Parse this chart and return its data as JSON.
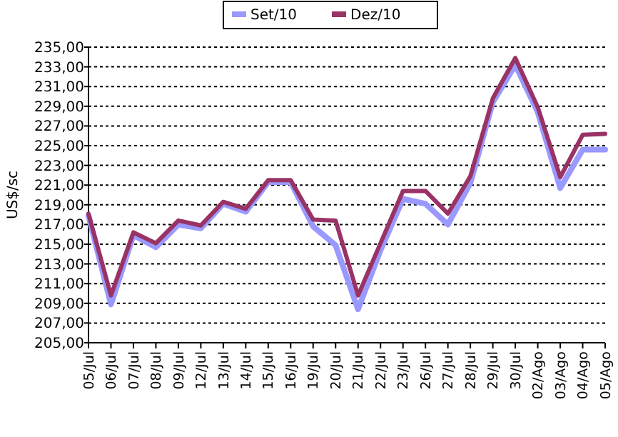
{
  "chart_data": {
    "type": "line",
    "ylabel": "US$/sc",
    "categories": [
      "05/Jul",
      "06/Jul",
      "07/Jul",
      "08/Jul",
      "09/Jul",
      "12/Jul",
      "13/Jul",
      "14/Jul",
      "15/Jul",
      "16/Jul",
      "19/Jul",
      "20/Jul",
      "21/Jul",
      "22/Jul",
      "23/Jul",
      "26/Jul",
      "27/Jul",
      "28/Jul",
      "29/Jul",
      "30/Jul",
      "02/Ago",
      "03/Ago",
      "04/Ago",
      "05/Ago"
    ],
    "series": [
      {
        "name": "Set/10",
        "color": "#9999ff",
        "values": [
          217.9,
          208.9,
          215.9,
          214.7,
          217.0,
          216.6,
          219.1,
          218.3,
          221.3,
          221.3,
          216.8,
          214.9,
          208.4,
          214.4,
          219.6,
          219.1,
          217.0,
          221.2,
          229.4,
          233.2,
          228.4,
          220.7,
          224.6,
          224.6
        ]
      },
      {
        "name": "Dez/10",
        "color": "#993366",
        "values": [
          218.1,
          209.8,
          216.2,
          215.1,
          217.4,
          216.9,
          219.3,
          218.6,
          221.5,
          221.5,
          217.5,
          217.4,
          209.8,
          215.1,
          220.4,
          220.4,
          218.1,
          221.9,
          229.8,
          233.9,
          228.9,
          221.8,
          226.1,
          226.2
        ]
      }
    ],
    "ylim": [
      205,
      235
    ],
    "yticks": [
      {
        "value": 205,
        "label": "205,00"
      },
      {
        "value": 207,
        "label": "207,00"
      },
      {
        "value": 209,
        "label": "209,00"
      },
      {
        "value": 211,
        "label": "211,00"
      },
      {
        "value": 213,
        "label": "213,00"
      },
      {
        "value": 215,
        "label": "215,00"
      },
      {
        "value": 217,
        "label": "217,00"
      },
      {
        "value": 219,
        "label": "219,00"
      },
      {
        "value": 221,
        "label": "221,00"
      },
      {
        "value": 223,
        "label": "223,00"
      },
      {
        "value": 225,
        "label": "225,00"
      },
      {
        "value": 227,
        "label": "227,00"
      },
      {
        "value": 229,
        "label": "229,00"
      },
      {
        "value": 231,
        "label": "231,00"
      },
      {
        "value": 233,
        "label": "233,00"
      },
      {
        "value": 235,
        "label": "235,00"
      }
    ],
    "grid": "y",
    "legend": "top",
    "line_style": "solid"
  }
}
